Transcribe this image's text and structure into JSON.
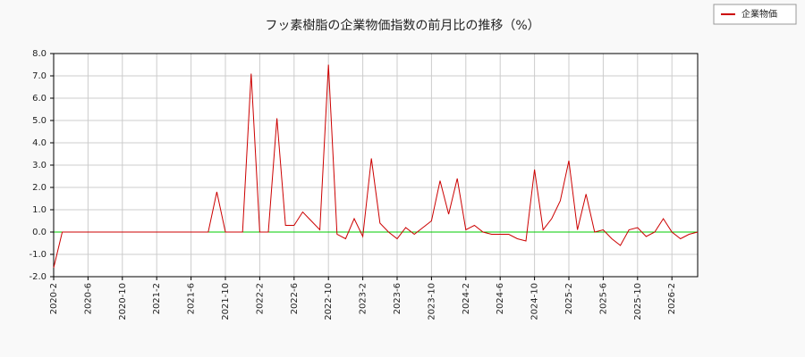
{
  "chart_data": {
    "type": "line",
    "title": "フッ素樹脂の企業物価指数の前月比の推移（%）",
    "categories": [
      "2020-2",
      null,
      null,
      null,
      "2020-6",
      null,
      null,
      null,
      "2020-10",
      null,
      null,
      null,
      "2021-2",
      null,
      null,
      null,
      "2021-6",
      null,
      null,
      null,
      "2021-10",
      null,
      null,
      null,
      "2022-2",
      null,
      null,
      null,
      "2022-6",
      null,
      null,
      null,
      "2022-10",
      null,
      null,
      null,
      "2023-2",
      null,
      null,
      null,
      "2023-6",
      null,
      null,
      null,
      "2023-10",
      null,
      null,
      null,
      "2024-2",
      null,
      null,
      null,
      "2024-6",
      null,
      null,
      null,
      "2024-10",
      null,
      null,
      null,
      "2025-2",
      null,
      null,
      null,
      "2025-6",
      null,
      null,
      null,
      "2025-10",
      null,
      null,
      null,
      "2026-2",
      null,
      null,
      null
    ],
    "series": [
      {
        "name": "企業物価",
        "color": "#cc0000",
        "values": [
          -1.6,
          0,
          0,
          0,
          0,
          0,
          0,
          0,
          0,
          0,
          0,
          0,
          0,
          0,
          0,
          0,
          0,
          0,
          0,
          1.8,
          0,
          0,
          0,
          7.1,
          0,
          0,
          5.1,
          0.3,
          0.3,
          0.9,
          0.5,
          0.1,
          7.5,
          -0.1,
          -0.3,
          0.6,
          -0.2,
          3.3,
          0.4,
          0,
          -0.3,
          0.2,
          -0.1,
          0.2,
          0.5,
          2.3,
          0.8,
          2.4,
          0.1,
          0.3,
          0,
          -0.1,
          -0.1,
          -0.1,
          -0.3,
          -0.4,
          2.8,
          0.1,
          0.6,
          1.4,
          3.2,
          0.1,
          1.7,
          0,
          0.1,
          -0.3,
          -0.6,
          0.1,
          0.2,
          -0.2,
          0,
          0.6,
          0,
          -0.3,
          -0.1,
          0
        ]
      }
    ],
    "ylim": [
      -2,
      8
    ],
    "yticks": [
      {
        "value": -2,
        "label": "-2.0"
      },
      {
        "value": -1,
        "label": "-1.0"
      },
      {
        "value": 0,
        "label": "0.0"
      },
      {
        "value": 1,
        "label": "1.0"
      },
      {
        "value": 2,
        "label": "2.0"
      },
      {
        "value": 3,
        "label": "3.0"
      },
      {
        "value": 4,
        "label": "4.0"
      },
      {
        "value": 5,
        "label": "5.0"
      },
      {
        "value": 6,
        "label": "6.0"
      },
      {
        "value": 7,
        "label": "7.0"
      },
      {
        "value": 8,
        "label": "8.0"
      }
    ],
    "grid": true,
    "zero_line_color": "#00cc00",
    "legend": "top-right"
  }
}
